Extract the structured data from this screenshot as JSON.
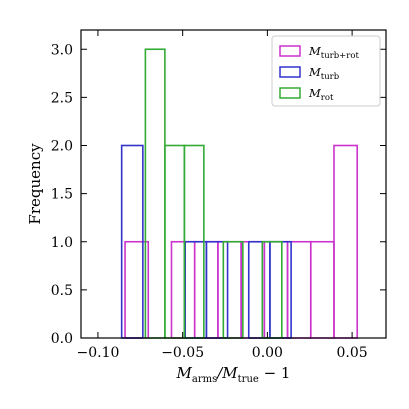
{
  "chart_data": {
    "type": "histogram",
    "xlabel_main": "M",
    "xlabel_sub1": "arms",
    "xlabel_mid": "/M",
    "xlabel_sub2": "true",
    "xlabel_tail": " − 1",
    "ylabel": "Frequency",
    "xlim": [
      -0.11,
      0.07
    ],
    "ylim": [
      0,
      3.2
    ],
    "x_ticks": [
      -0.1,
      -0.05,
      0.0,
      0.05
    ],
    "x_tick_labels": [
      "−0.10",
      "−0.05",
      "0.00",
      "0.05"
    ],
    "y_ticks": [
      0.0,
      0.5,
      1.0,
      1.5,
      2.0,
      2.5,
      3.0
    ],
    "y_tick_labels": [
      "0.0",
      "0.5",
      "1.0",
      "1.5",
      "2.0",
      "2.5",
      "3.0"
    ],
    "legend_position": "upper right",
    "series": [
      {
        "key": "turb_rot",
        "legend_main": "M",
        "legend_sub": "turb+rot",
        "color": "#cc33cc",
        "bin_edges": [
          -0.084,
          -0.0703,
          -0.0566,
          -0.0429,
          -0.0292,
          -0.0155,
          -0.0018,
          0.0119,
          0.0256,
          0.0393,
          0.053
        ],
        "counts": [
          1,
          0,
          1,
          1,
          1,
          1,
          1,
          1,
          1,
          2
        ]
      },
      {
        "key": "turb",
        "legend_main": "M",
        "legend_sub": "turb",
        "color": "#3333cc",
        "bin_edges": [
          -0.086,
          -0.0735,
          -0.061,
          -0.0485,
          -0.036,
          -0.0235,
          -0.011,
          0.0015,
          0.014,
          0.0265
        ],
        "counts": [
          2,
          0,
          0,
          1,
          1,
          0,
          1,
          1,
          0
        ]
      },
      {
        "key": "rot",
        "legend_main": "M",
        "legend_sub": "rot",
        "color": "#33aa33",
        "bin_edges": [
          -0.072,
          -0.0605,
          -0.049,
          -0.0375,
          -0.026,
          -0.0145,
          -0.003,
          0.0085
        ],
        "counts": [
          3,
          2,
          2,
          0,
          1,
          0,
          1
        ]
      }
    ]
  }
}
